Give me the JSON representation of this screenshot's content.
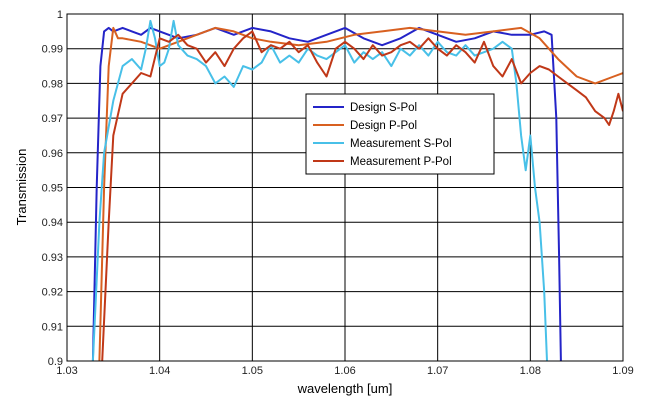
{
  "chart_data": {
    "type": "line",
    "xlabel": "wavelength [um]",
    "ylabel": "Transmission",
    "xlim": [
      1.03,
      1.09
    ],
    "ylim": [
      0.9,
      1.0
    ],
    "xticks": [
      "1.03",
      "1.04",
      "1.05",
      "1.06",
      "1.07",
      "1.08",
      "1.09"
    ],
    "yticks": [
      "0.9",
      "0.91",
      "0.92",
      "0.93",
      "0.94",
      "0.95",
      "0.96",
      "0.97",
      "0.98",
      "0.99",
      "1"
    ],
    "grid": true,
    "legend_position": "center",
    "series": [
      {
        "name": "Design S-Pol",
        "color": "#2424c8",
        "points": [
          [
            1.0328,
            0.9
          ],
          [
            1.0332,
            0.95
          ],
          [
            1.0336,
            0.985
          ],
          [
            1.034,
            0.995
          ],
          [
            1.0345,
            0.996
          ],
          [
            1.035,
            0.995
          ],
          [
            1.036,
            0.996
          ],
          [
            1.037,
            0.995
          ],
          [
            1.038,
            0.994
          ],
          [
            1.039,
            0.996
          ],
          [
            1.04,
            0.995
          ],
          [
            1.042,
            0.993
          ],
          [
            1.044,
            0.994
          ],
          [
            1.046,
            0.996
          ],
          [
            1.048,
            0.994
          ],
          [
            1.05,
            0.996
          ],
          [
            1.052,
            0.995
          ],
          [
            1.054,
            0.993
          ],
          [
            1.056,
            0.992
          ],
          [
            1.058,
            0.994
          ],
          [
            1.06,
            0.996
          ],
          [
            1.062,
            0.993
          ],
          [
            1.064,
            0.991
          ],
          [
            1.066,
            0.993
          ],
          [
            1.068,
            0.996
          ],
          [
            1.07,
            0.994
          ],
          [
            1.072,
            0.992
          ],
          [
            1.074,
            0.993
          ],
          [
            1.076,
            0.995
          ],
          [
            1.078,
            0.994
          ],
          [
            1.08,
            0.994
          ],
          [
            1.0815,
            0.995
          ],
          [
            1.0823,
            0.994
          ],
          [
            1.0828,
            0.97
          ],
          [
            1.0831,
            0.93
          ],
          [
            1.0833,
            0.9
          ]
        ]
      },
      {
        "name": "Design P-Pol",
        "color": "#d86020",
        "points": [
          [
            1.0335,
            0.9
          ],
          [
            1.034,
            0.95
          ],
          [
            1.0345,
            0.985
          ],
          [
            1.035,
            0.996
          ],
          [
            1.0355,
            0.993
          ],
          [
            1.036,
            0.993
          ],
          [
            1.038,
            0.992
          ],
          [
            1.04,
            0.99
          ],
          [
            1.042,
            0.992
          ],
          [
            1.044,
            0.994
          ],
          [
            1.046,
            0.996
          ],
          [
            1.048,
            0.995
          ],
          [
            1.05,
            0.993
          ],
          [
            1.052,
            0.992
          ],
          [
            1.055,
            0.991
          ],
          [
            1.058,
            0.992
          ],
          [
            1.061,
            0.994
          ],
          [
            1.064,
            0.995
          ],
          [
            1.067,
            0.996
          ],
          [
            1.07,
            0.995
          ],
          [
            1.073,
            0.994
          ],
          [
            1.076,
            0.995
          ],
          [
            1.079,
            0.996
          ],
          [
            1.081,
            0.993
          ],
          [
            1.083,
            0.987
          ],
          [
            1.085,
            0.982
          ],
          [
            1.087,
            0.98
          ],
          [
            1.089,
            0.982
          ],
          [
            1.09,
            0.983
          ]
        ]
      },
      {
        "name": "Measurement S-Pol",
        "color": "#48c0e8",
        "points": [
          [
            1.0328,
            0.9
          ],
          [
            1.0335,
            0.94
          ],
          [
            1.034,
            0.96
          ],
          [
            1.035,
            0.975
          ],
          [
            1.036,
            0.985
          ],
          [
            1.037,
            0.987
          ],
          [
            1.038,
            0.984
          ],
          [
            1.0385,
            0.99
          ],
          [
            1.039,
            0.998
          ],
          [
            1.0395,
            0.993
          ],
          [
            1.04,
            0.985
          ],
          [
            1.0405,
            0.986
          ],
          [
            1.041,
            0.99
          ],
          [
            1.0415,
            0.998
          ],
          [
            1.042,
            0.991
          ],
          [
            1.043,
            0.988
          ],
          [
            1.044,
            0.987
          ],
          [
            1.045,
            0.985
          ],
          [
            1.046,
            0.98
          ],
          [
            1.047,
            0.982
          ],
          [
            1.048,
            0.979
          ],
          [
            1.049,
            0.985
          ],
          [
            1.05,
            0.984
          ],
          [
            1.051,
            0.986
          ],
          [
            1.052,
            0.991
          ],
          [
            1.053,
            0.986
          ],
          [
            1.054,
            0.988
          ],
          [
            1.055,
            0.986
          ],
          [
            1.056,
            0.99
          ],
          [
            1.057,
            0.988
          ],
          [
            1.058,
            0.987
          ],
          [
            1.059,
            0.989
          ],
          [
            1.06,
            0.991
          ],
          [
            1.061,
            0.986
          ],
          [
            1.062,
            0.989
          ],
          [
            1.063,
            0.987
          ],
          [
            1.064,
            0.989
          ],
          [
            1.065,
            0.985
          ],
          [
            1.066,
            0.99
          ],
          [
            1.067,
            0.988
          ],
          [
            1.068,
            0.991
          ],
          [
            1.069,
            0.988
          ],
          [
            1.07,
            0.992
          ],
          [
            1.071,
            0.989
          ],
          [
            1.072,
            0.988
          ],
          [
            1.073,
            0.991
          ],
          [
            1.074,
            0.988
          ],
          [
            1.075,
            0.989
          ],
          [
            1.076,
            0.99
          ],
          [
            1.077,
            0.992
          ],
          [
            1.078,
            0.99
          ],
          [
            1.0785,
            0.98
          ],
          [
            1.079,
            0.965
          ],
          [
            1.0795,
            0.955
          ],
          [
            1.08,
            0.965
          ],
          [
            1.0805,
            0.95
          ],
          [
            1.081,
            0.94
          ],
          [
            1.0815,
            0.92
          ],
          [
            1.0818,
            0.9
          ]
        ]
      },
      {
        "name": "Measurement P-Pol",
        "color": "#c03818",
        "points": [
          [
            1.0338,
            0.9
          ],
          [
            1.0345,
            0.94
          ],
          [
            1.035,
            0.965
          ],
          [
            1.036,
            0.977
          ],
          [
            1.037,
            0.98
          ],
          [
            1.038,
            0.983
          ],
          [
            1.039,
            0.982
          ],
          [
            1.04,
            0.993
          ],
          [
            1.041,
            0.992
          ],
          [
            1.042,
            0.994
          ],
          [
            1.043,
            0.991
          ],
          [
            1.044,
            0.99
          ],
          [
            1.045,
            0.986
          ],
          [
            1.046,
            0.989
          ],
          [
            1.047,
            0.985
          ],
          [
            1.048,
            0.99
          ],
          [
            1.049,
            0.993
          ],
          [
            1.05,
            0.995
          ],
          [
            1.051,
            0.989
          ],
          [
            1.052,
            0.991
          ],
          [
            1.053,
            0.99
          ],
          [
            1.054,
            0.992
          ],
          [
            1.055,
            0.989
          ],
          [
            1.056,
            0.991
          ],
          [
            1.057,
            0.986
          ],
          [
            1.058,
            0.982
          ],
          [
            1.059,
            0.99
          ],
          [
            1.06,
            0.992
          ],
          [
            1.061,
            0.99
          ],
          [
            1.062,
            0.987
          ],
          [
            1.063,
            0.991
          ],
          [
            1.064,
            0.988
          ],
          [
            1.065,
            0.989
          ],
          [
            1.066,
            0.991
          ],
          [
            1.067,
            0.992
          ],
          [
            1.068,
            0.99
          ],
          [
            1.069,
            0.993
          ],
          [
            1.07,
            0.99
          ],
          [
            1.071,
            0.988
          ],
          [
            1.072,
            0.991
          ],
          [
            1.073,
            0.989
          ],
          [
            1.074,
            0.986
          ],
          [
            1.075,
            0.992
          ],
          [
            1.076,
            0.985
          ],
          [
            1.077,
            0.982
          ],
          [
            1.078,
            0.987
          ],
          [
            1.079,
            0.98
          ],
          [
            1.08,
            0.983
          ],
          [
            1.081,
            0.985
          ],
          [
            1.082,
            0.984
          ],
          [
            1.083,
            0.982
          ],
          [
            1.084,
            0.98
          ],
          [
            1.085,
            0.978
          ],
          [
            1.086,
            0.976
          ],
          [
            1.087,
            0.972
          ],
          [
            1.088,
            0.97
          ],
          [
            1.0885,
            0.968
          ],
          [
            1.089,
            0.972
          ],
          [
            1.0895,
            0.977
          ],
          [
            1.09,
            0.972
          ]
        ]
      }
    ]
  }
}
